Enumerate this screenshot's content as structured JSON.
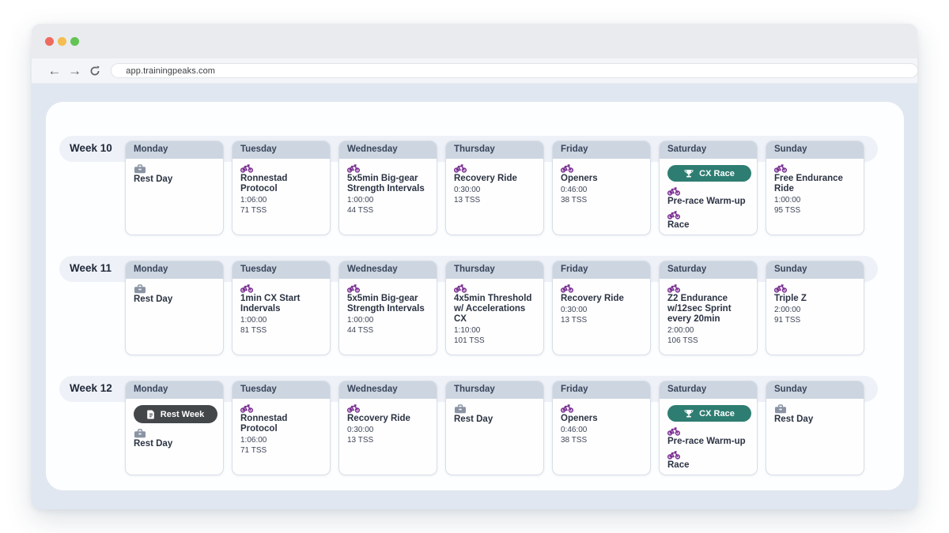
{
  "browser": {
    "url": "app.trainingpeaks.com",
    "back_icon": "←",
    "forward_icon": "→",
    "reload_icon_name": "reload-icon",
    "traffic_lights": [
      "#ee6a5f",
      "#f5bd4f",
      "#61c454"
    ]
  },
  "colors": {
    "bike_icon": "#7b2f92",
    "rest_icon": "#8a94a3",
    "race_badge": "#2e7d72",
    "note_badge": "#44474a",
    "day_header": "#ccd5e0",
    "week_pill": "#eef1f7"
  },
  "weeks": [
    {
      "label": "Week 10",
      "days": [
        {
          "name": "Monday",
          "items": [
            {
              "type": "rest",
              "title": "Rest Day"
            }
          ]
        },
        {
          "name": "Tuesday",
          "items": [
            {
              "type": "bike",
              "title": "Ronnestad Protocol",
              "duration": "1:06:00",
              "tss": "71 TSS"
            }
          ]
        },
        {
          "name": "Wednesday",
          "items": [
            {
              "type": "bike",
              "title": "5x5min Big-gear Strength Intervals",
              "duration": "1:00:00",
              "tss": "44 TSS"
            }
          ]
        },
        {
          "name": "Thursday",
          "items": [
            {
              "type": "bike",
              "title": "Recovery Ride",
              "duration": "0:30:00",
              "tss": "13 TSS"
            }
          ]
        },
        {
          "name": "Friday",
          "items": [
            {
              "type": "bike",
              "title": "Openers",
              "duration": "0:46:00",
              "tss": "38 TSS"
            }
          ]
        },
        {
          "name": "Saturday",
          "items": [
            {
              "type": "race-badge",
              "title": "CX Race"
            },
            {
              "type": "bike",
              "title": "Pre-race Warm-up"
            },
            {
              "type": "bike",
              "title": "Race"
            }
          ]
        },
        {
          "name": "Sunday",
          "items": [
            {
              "type": "bike",
              "title": "Free Endurance Ride",
              "duration": "1:00:00",
              "tss": "95 TSS"
            }
          ]
        }
      ]
    },
    {
      "label": "Week 11",
      "days": [
        {
          "name": "Monday",
          "items": [
            {
              "type": "rest",
              "title": "Rest Day"
            }
          ]
        },
        {
          "name": "Tuesday",
          "items": [
            {
              "type": "bike",
              "title": "1min CX Start Indervals",
              "duration": "1:00:00",
              "tss": "81 TSS"
            }
          ]
        },
        {
          "name": "Wednesday",
          "items": [
            {
              "type": "bike",
              "title": "5x5min Big-gear Strength Intervals",
              "duration": "1:00:00",
              "tss": "44 TSS"
            }
          ]
        },
        {
          "name": "Thursday",
          "items": [
            {
              "type": "bike",
              "title": "4x5min Threshold w/ Accelerations CX",
              "duration": "1:10:00",
              "tss": "101 TSS"
            }
          ]
        },
        {
          "name": "Friday",
          "items": [
            {
              "type": "bike",
              "title": "Recovery Ride",
              "duration": "0:30:00",
              "tss": "13 TSS"
            }
          ]
        },
        {
          "name": "Saturday",
          "items": [
            {
              "type": "bike",
              "title": "Z2 Endurance w/12sec Sprint every 20min",
              "duration": "2:00:00",
              "tss": "106 TSS"
            }
          ]
        },
        {
          "name": "Sunday",
          "items": [
            {
              "type": "bike",
              "title": "Triple Z",
              "duration": "2:00:00",
              "tss": "91 TSS"
            }
          ]
        }
      ]
    },
    {
      "label": "Week 12",
      "days": [
        {
          "name": "Monday",
          "items": [
            {
              "type": "note-badge",
              "title": "Rest Week"
            },
            {
              "type": "rest",
              "title": "Rest Day"
            }
          ]
        },
        {
          "name": "Tuesday",
          "items": [
            {
              "type": "bike",
              "title": "Ronnestad Protocol",
              "duration": "1:06:00",
              "tss": "71 TSS"
            }
          ]
        },
        {
          "name": "Wednesday",
          "items": [
            {
              "type": "bike",
              "title": "Recovery Ride",
              "duration": "0:30:00",
              "tss": "13 TSS"
            }
          ]
        },
        {
          "name": "Thursday",
          "items": [
            {
              "type": "rest",
              "title": "Rest Day"
            }
          ]
        },
        {
          "name": "Friday",
          "items": [
            {
              "type": "bike",
              "title": "Openers",
              "duration": "0:46:00",
              "tss": "38 TSS"
            }
          ]
        },
        {
          "name": "Saturday",
          "items": [
            {
              "type": "race-badge",
              "title": "CX Race"
            },
            {
              "type": "bike",
              "title": "Pre-race Warm-up"
            },
            {
              "type": "bike",
              "title": "Race"
            }
          ]
        },
        {
          "name": "Sunday",
          "items": [
            {
              "type": "rest",
              "title": "Rest Day"
            }
          ]
        }
      ]
    }
  ]
}
